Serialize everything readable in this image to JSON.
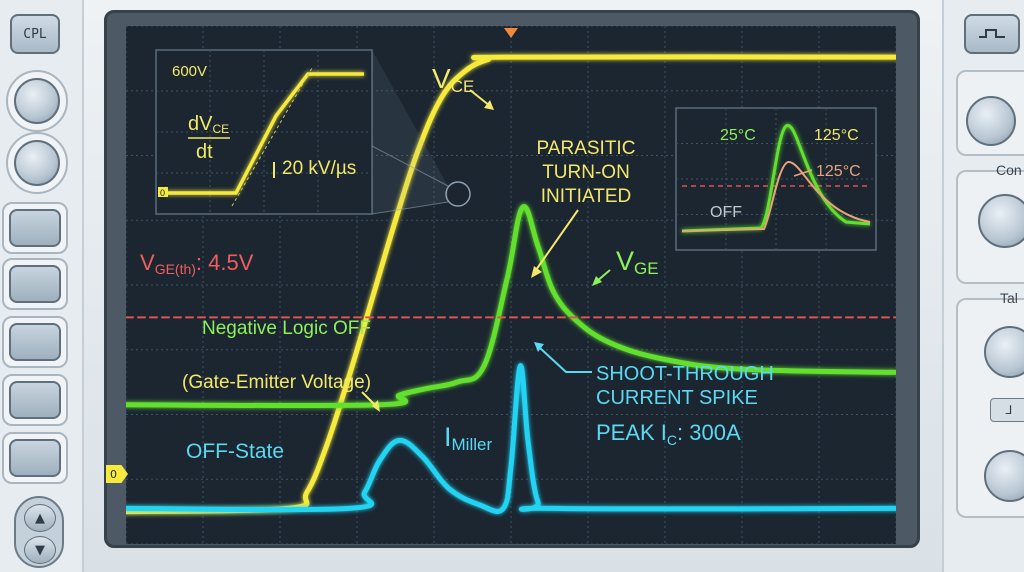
{
  "controls": {
    "cpl_label": "CPL",
    "right_labels": [
      "Con",
      "Tal"
    ],
    "small_button_label": "⅃"
  },
  "colors": {
    "vce": "#f6ea3c",
    "vge": "#63e02e",
    "imiller": "#22d3f2",
    "threshold": "#e25151",
    "grid": "#3f5163",
    "screen": "#1b2631",
    "label_yellow": "#f3e86a",
    "label_green": "#8ef05b",
    "label_cyan": "#5bd8f2",
    "label_red": "#ef5d5d"
  },
  "chart_data": {
    "type": "line",
    "title": "",
    "xlabel": "",
    "ylabel": "",
    "grid": true,
    "x_divisions": 10,
    "y_divisions": 8,
    "trigger_marker": "top",
    "ground_marker_label": "0",
    "xlim": [
      0,
      10
    ],
    "ylim": [
      0,
      8
    ],
    "series": [
      {
        "name": "VCE",
        "color": "#f6ea3c",
        "x": [
          0,
          2.1,
          2.35,
          2.6,
          2.9,
          3.2,
          3.5,
          3.8,
          4.1,
          4.4,
          4.7,
          5.0,
          10
        ],
        "y": [
          0.5,
          0.55,
          0.8,
          1.5,
          2.6,
          3.8,
          5.0,
          6.1,
          6.9,
          7.3,
          7.48,
          7.52,
          7.52
        ]
      },
      {
        "name": "VGE",
        "color": "#63e02e",
        "x": [
          0,
          3.3,
          3.55,
          3.9,
          4.3,
          4.65,
          4.95,
          5.15,
          5.35,
          5.55,
          5.85,
          6.3,
          7.0,
          8.0,
          10
        ],
        "y": [
          2.15,
          2.15,
          2.3,
          2.4,
          2.5,
          2.75,
          4.1,
          5.2,
          4.6,
          3.9,
          3.45,
          3.1,
          2.85,
          2.7,
          2.65
        ]
      },
      {
        "name": "IMiller",
        "color": "#22d3f2",
        "x": [
          0,
          2.9,
          3.1,
          3.3,
          3.55,
          3.85,
          4.2,
          4.6,
          4.9,
          5.0,
          5.12,
          5.22,
          5.35,
          5.55,
          10
        ],
        "y": [
          0.55,
          0.55,
          0.8,
          1.3,
          1.6,
          1.35,
          0.85,
          0.6,
          0.55,
          1.2,
          2.75,
          1.6,
          0.65,
          0.55,
          0.55
        ]
      },
      {
        "name": "VGE(th)",
        "color": "#e25151",
        "dashed": true,
        "x": [
          0,
          10
        ],
        "y": [
          3.5,
          3.5
        ]
      }
    ],
    "annotations": {
      "vce_label": "V",
      "vce_sub": "CE",
      "vge_label": "V",
      "vge_sub": "GE",
      "threshold_label": "V",
      "threshold_sub": "GE(th)",
      "threshold_value": ": 4.5V",
      "imiller_label": "I",
      "imiller_sub": "Miller",
      "negative_logic": "Negative Logic OFF",
      "gate_emitter": "(Gate-Emitter Voltage)",
      "off_state": "OFF-State",
      "parasitic_lines": [
        "PARASITIC",
        "TURN-ON",
        "INITIATED"
      ],
      "shoot_lines": [
        "SHOOT-THROUGH",
        "CURRENT SPIKE"
      ],
      "peak_label": "PEAK I",
      "peak_sub": "C",
      "peak_value": ": 300A"
    },
    "inset_dv": {
      "voltage_label": "600V",
      "dv_num": "dV",
      "dv_num_sub": "CE",
      "dv_den": "dt",
      "rate_label": "20 kV/µs",
      "ground_label": "0"
    },
    "inset_temp": {
      "labels": [
        "25°C",
        "125°C",
        "125°C",
        "OFF"
      ]
    }
  }
}
